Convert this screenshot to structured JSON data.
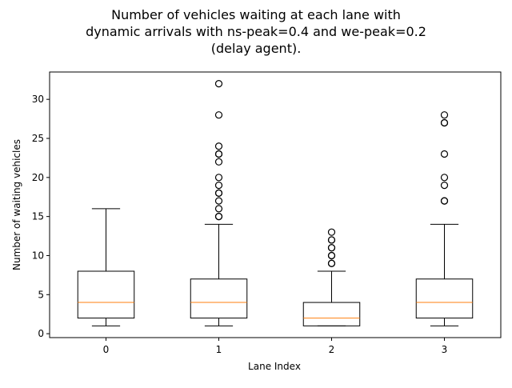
{
  "chart_data": {
    "type": "box",
    "title_lines": [
      "Number of vehicles waiting at each lane with",
      "dynamic arrivals with ns-peak=0.4 and we-peak=0.2",
      "(delay agent)."
    ],
    "xlabel": "Lane Index",
    "ylabel": "Number of waiting vehicles",
    "categories": [
      "0",
      "1",
      "2",
      "3"
    ],
    "ylim": [
      -0.5,
      33.5
    ],
    "yticks": [
      0,
      5,
      10,
      15,
      20,
      25,
      30
    ],
    "grid": false,
    "boxes": [
      {
        "category": "0",
        "whisker_low": 1,
        "q1": 2,
        "median": 4,
        "q3": 8,
        "whisker_high": 16,
        "outliers": []
      },
      {
        "category": "1",
        "whisker_low": 1,
        "q1": 2,
        "median": 4,
        "q3": 7,
        "whisker_high": 14,
        "outliers": [
          15,
          15,
          16,
          17,
          18,
          18,
          19,
          20,
          22,
          23,
          23,
          24,
          28,
          32
        ]
      },
      {
        "category": "2",
        "whisker_low": 1,
        "q1": 1,
        "median": 2,
        "q3": 4,
        "whisker_high": 8,
        "outliers": [
          9,
          9,
          10,
          10,
          11,
          11,
          12,
          12,
          13
        ]
      },
      {
        "category": "3",
        "whisker_low": 1,
        "q1": 2,
        "median": 4,
        "q3": 7,
        "whisker_high": 14,
        "outliers": [
          17,
          17,
          19,
          20,
          23,
          27,
          27,
          28
        ]
      }
    ],
    "colors": {
      "box": "#000000",
      "median": "#ff7f0e",
      "outlier": "#000000"
    }
  }
}
